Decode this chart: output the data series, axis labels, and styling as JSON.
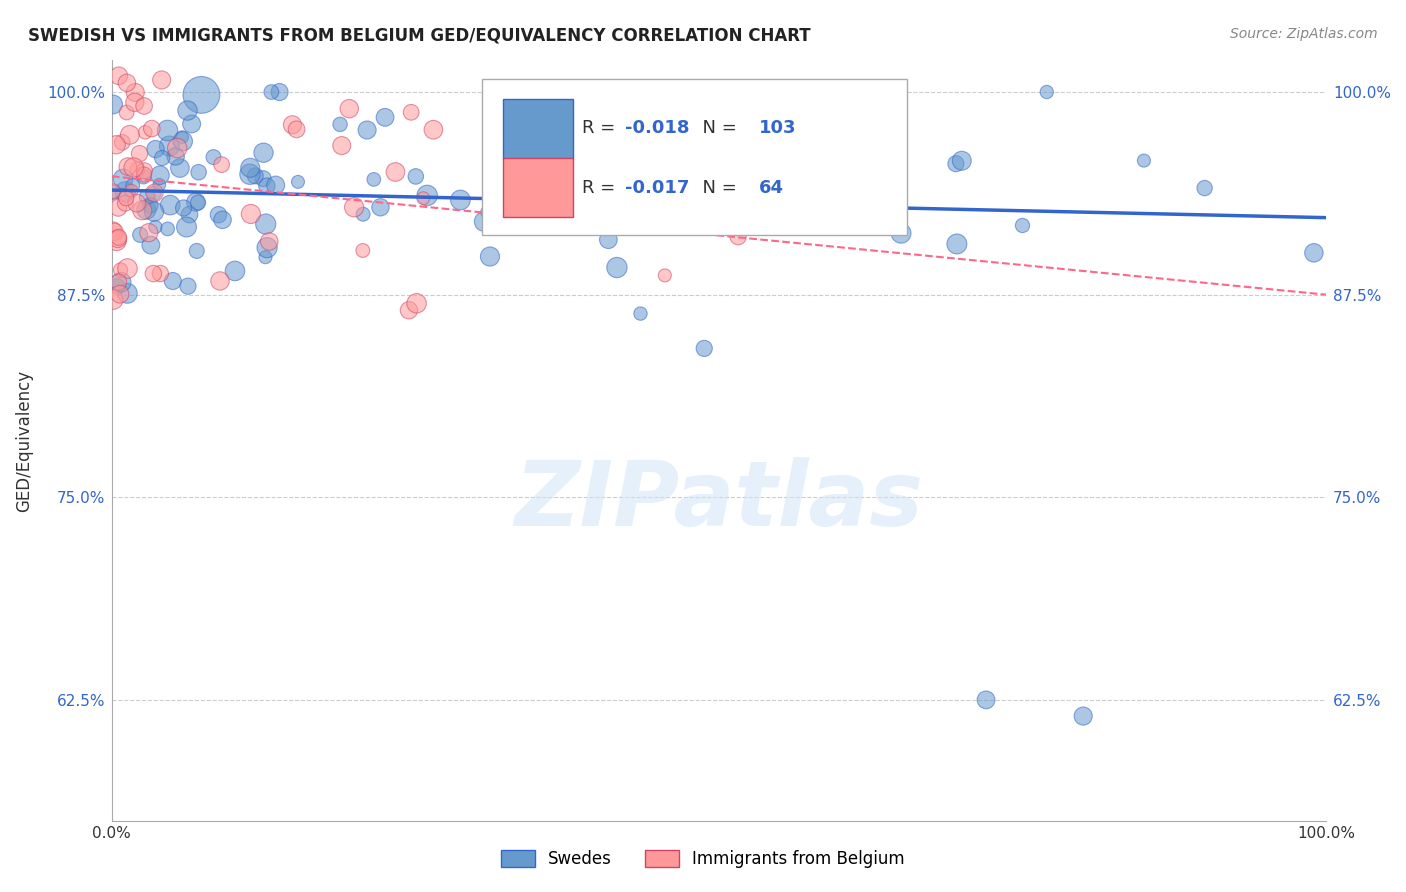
{
  "title": "SWEDISH VS IMMIGRANTS FROM BELGIUM GED/EQUIVALENCY CORRELATION CHART",
  "source": "Source: ZipAtlas.com",
  "ylabel": "GED/Equivalency",
  "xlabel": "",
  "xlim": [
    0.0,
    1.0
  ],
  "ylim": [
    0.55,
    1.02
  ],
  "yticks": [
    0.625,
    0.75,
    0.875,
    1.0
  ],
  "ytick_labels": [
    "62.5%",
    "75.0%",
    "87.5%",
    "100.0%"
  ],
  "xticks": [
    0.0,
    0.1,
    0.2,
    0.3,
    0.4,
    0.5,
    0.6,
    0.7,
    0.8,
    0.9,
    1.0
  ],
  "xtick_labels": [
    "0.0%",
    "",
    "",
    "",
    "",
    "",
    "",
    "",
    "",
    "",
    "100.0%"
  ],
  "blue_color": "#6699cc",
  "pink_color": "#ff9999",
  "blue_line_color": "#3366cc",
  "pink_line_color": "#ff6688",
  "legend_R_blue": "-0.018",
  "legend_N_blue": "103",
  "legend_R_pink": "-0.017",
  "legend_N_pink": "64",
  "watermark": "ZIPatlas",
  "blue_line_y_start": 0.9395,
  "blue_line_y_end": 0.9225,
  "pink_line_y_start": 0.948,
  "pink_line_y_end": 0.875,
  "grid_color": "#cccccc",
  "background_color": "#ffffff"
}
